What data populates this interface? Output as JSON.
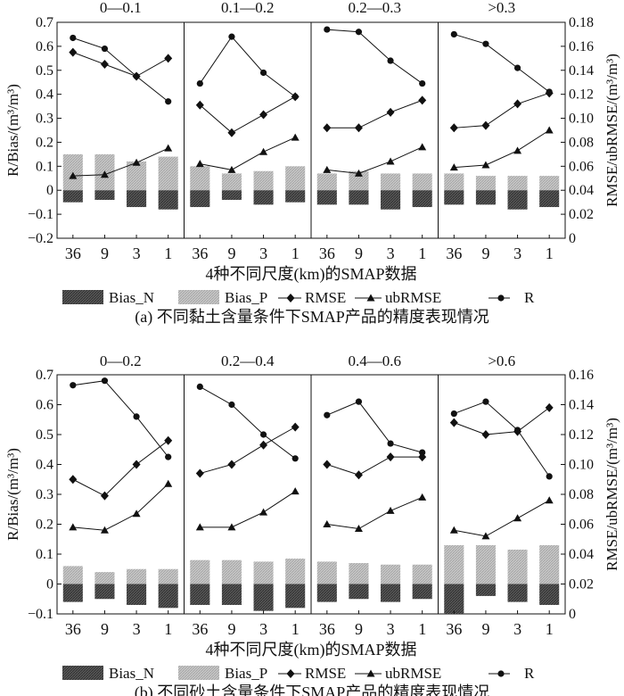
{
  "legend": {
    "bias_n": "Bias_N",
    "bias_p": "Bias_P",
    "rmse": "RMSE",
    "ubrmse": "ubRMSE",
    "r": "R"
  },
  "chart_data": [
    {
      "type": "bar",
      "caption": "(a) 不同黏土含量条件下SMAP产品的精度表现情况",
      "xlabel": "4种不同尺度(km)的SMAP数据",
      "ylabel": "R/Bias/(m³/m³)",
      "y2label": "RMSE/ubRMSE/(m³/m³)",
      "ylim": [
        -0.2,
        0.7
      ],
      "y2lim": [
        0,
        0.18
      ],
      "yticks": [
        "−0.2",
        "−0.1",
        "0",
        "0.1",
        "0.2",
        "0.3",
        "0.4",
        "0.5",
        "0.6",
        "0.7"
      ],
      "y2ticks": [
        "0",
        "0.02",
        "0.04",
        "0.06",
        "0.08",
        "0.10",
        "0.12",
        "0.14",
        "0.16",
        "0.18"
      ],
      "categories": [
        "36",
        "9",
        "3",
        "1"
      ],
      "groups": [
        {
          "label": "0—0.1",
          "bias_n": [
            -0.05,
            -0.04,
            -0.07,
            -0.08
          ],
          "bias_p": [
            0.15,
            0.15,
            0.12,
            0.14
          ],
          "rmse": [
            0.155,
            0.145,
            0.135,
            0.15
          ],
          "ubrmse": [
            0.052,
            0.053,
            0.063,
            0.075
          ],
          "r": [
            0.635,
            0.59,
            0.475,
            0.37
          ]
        },
        {
          "label": "0.1—0.2",
          "bias_n": [
            -0.07,
            -0.04,
            -0.06,
            -0.05
          ],
          "bias_p": [
            0.1,
            0.07,
            0.08,
            0.1
          ],
          "rmse": [
            0.111,
            0.088,
            0.103,
            0.118
          ],
          "ubrmse": [
            0.062,
            0.057,
            0.072,
            0.084
          ],
          "r": [
            0.445,
            0.64,
            0.49,
            0.39
          ]
        },
        {
          "label": "0.2—0.3",
          "bias_n": [
            -0.06,
            -0.06,
            -0.08,
            -0.07
          ],
          "bias_p": [
            0.07,
            0.08,
            0.07,
            0.07
          ],
          "rmse": [
            0.092,
            0.092,
            0.105,
            0.115
          ],
          "ubrmse": [
            0.057,
            0.054,
            0.064,
            0.076
          ],
          "r": [
            0.67,
            0.66,
            0.54,
            0.445
          ]
        },
        {
          "label": ">0.3",
          "bias_n": [
            -0.06,
            -0.06,
            -0.08,
            -0.07
          ],
          "bias_p": [
            0.07,
            0.06,
            0.06,
            0.06
          ],
          "rmse": [
            0.092,
            0.094,
            0.112,
            0.121
          ],
          "ubrmse": [
            0.059,
            0.061,
            0.073,
            0.09
          ],
          "r": [
            0.65,
            0.61,
            0.51,
            0.41
          ]
        }
      ]
    },
    {
      "type": "bar",
      "caption": "(b) 不同砂土含量条件下SMAP产品的精度表现情况",
      "xlabel": "4种不同尺度(km)的SMAP数据",
      "ylabel": "R/Bias/(m³/m³)",
      "y2label": "RMSE/ubRMSE/(m³/m³)",
      "ylim": [
        -0.1,
        0.7
      ],
      "y2lim": [
        0,
        0.16
      ],
      "yticks": [
        "−0.1",
        "0",
        "0.1",
        "0.2",
        "0.3",
        "0.4",
        "0.5",
        "0.6",
        "0.7"
      ],
      "y2ticks": [
        "0",
        "0.02",
        "0.04",
        "0.06",
        "0.08",
        "0.10",
        "0.12",
        "0.14",
        "0.16"
      ],
      "categories": [
        "36",
        "9",
        "3",
        "1"
      ],
      "groups": [
        {
          "label": "0—0.2",
          "bias_n": [
            -0.06,
            -0.05,
            -0.07,
            -0.08
          ],
          "bias_p": [
            0.06,
            0.04,
            0.05,
            0.05
          ],
          "rmse": [
            0.09,
            0.079,
            0.1,
            0.116
          ],
          "ubrmse": [
            0.058,
            0.056,
            0.067,
            0.087
          ],
          "r": [
            0.665,
            0.68,
            0.56,
            0.425
          ]
        },
        {
          "label": "0.2—0.4",
          "bias_n": [
            -0.07,
            -0.07,
            -0.09,
            -0.08
          ],
          "bias_p": [
            0.08,
            0.08,
            0.075,
            0.085
          ],
          "rmse": [
            0.094,
            0.1,
            0.113,
            0.125
          ],
          "ubrmse": [
            0.058,
            0.058,
            0.068,
            0.082
          ],
          "r": [
            0.66,
            0.6,
            0.5,
            0.42
          ]
        },
        {
          "label": "0.4—0.6",
          "bias_n": [
            -0.06,
            -0.05,
            -0.06,
            -0.05
          ],
          "bias_p": [
            0.075,
            0.07,
            0.065,
            0.065
          ],
          "rmse": [
            0.1,
            0.093,
            0.105,
            0.105
          ],
          "ubrmse": [
            0.06,
            0.057,
            0.069,
            0.078
          ],
          "r": [
            0.565,
            0.61,
            0.47,
            0.44
          ]
        },
        {
          "label": ">0.6",
          "bias_n": [
            -0.1,
            -0.04,
            -0.06,
            -0.07
          ],
          "bias_p": [
            0.13,
            0.13,
            0.115,
            0.13
          ],
          "rmse": [
            0.128,
            0.12,
            0.122,
            0.138
          ],
          "ubrmse": [
            0.056,
            0.052,
            0.064,
            0.076
          ],
          "r": [
            0.57,
            0.61,
            0.515,
            0.36
          ]
        }
      ]
    }
  ]
}
